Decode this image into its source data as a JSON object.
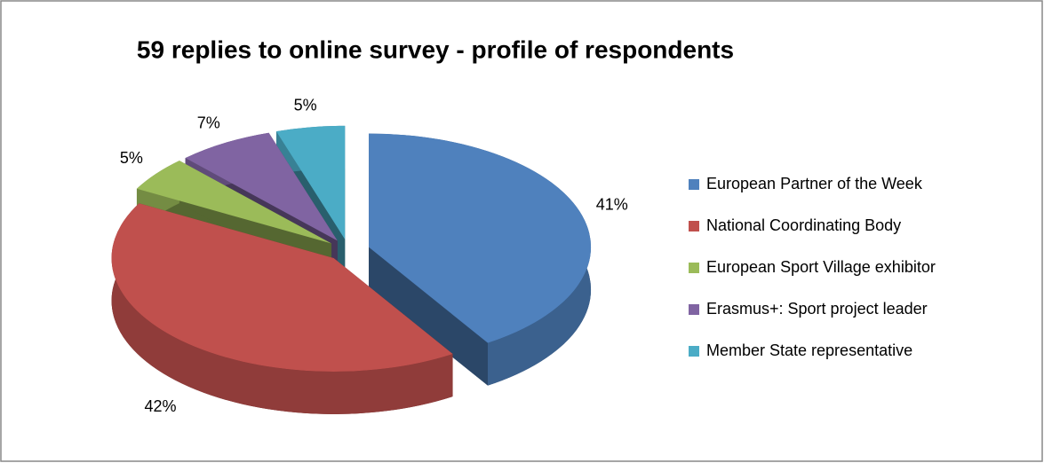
{
  "chart_data": {
    "type": "pie3d",
    "title": "59 replies to online survey - profile of respondents",
    "categories": [
      "European Partner of the Week",
      "National Coordinating Body",
      "European Sport Village exhibitor",
      "Erasmus+: Sport project leader",
      "Member State representative"
    ],
    "values": [
      41,
      42,
      5,
      7,
      5
    ],
    "value_labels": [
      "41%",
      "42%",
      "5%",
      "7%",
      "5%"
    ],
    "colors": [
      "#4f81bd",
      "#c0504d",
      "#9bbb59",
      "#8064a2",
      "#4bacc6"
    ],
    "legend": "right"
  }
}
